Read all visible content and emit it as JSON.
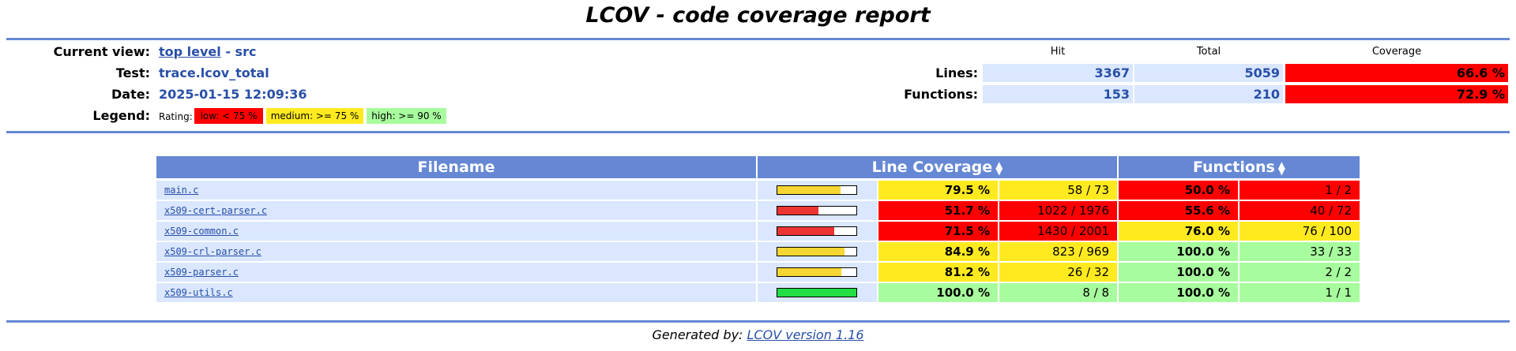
{
  "title": "LCOV - code coverage report",
  "header": {
    "current_view_label": "Current view:",
    "current_view_link": "top level",
    "current_view_rest": " - src",
    "test_label": "Test:",
    "test_value": "trace.lcov_total",
    "date_label": "Date:",
    "date_value": "2025-01-15 12:09:36",
    "legend_label": "Legend:",
    "legend_rating": "Rating:",
    "legend_low": "low: < 75 %",
    "legend_medium": "medium: >= 75 %",
    "legend_high": "high: >= 90 %"
  },
  "summary": {
    "col_hit": "Hit",
    "col_total": "Total",
    "col_coverage": "Coverage",
    "lines_label": "Lines:",
    "lines_hit": "3367",
    "lines_total": "5059",
    "lines_cov": "66.6 %",
    "functions_label": "Functions:",
    "functions_hit": "153",
    "functions_total": "210",
    "functions_cov": "72.9 %"
  },
  "table": {
    "col_filename": "Filename",
    "col_line_cov": "Line Coverage",
    "col_functions": "Functions",
    "rows": [
      {
        "file": "main.c",
        "fill": 0.795,
        "line_pct": "79.5 %",
        "line_ratio": "58 / 73",
        "line_rating": "med",
        "func_pct": "50.0 %",
        "func_ratio": "1 / 2",
        "func_rating": "lo"
      },
      {
        "file": "x509-cert-parser.c",
        "fill": 0.517,
        "line_pct": "51.7 %",
        "line_ratio": "1022 / 1976",
        "line_rating": "lo",
        "func_pct": "55.6 %",
        "func_ratio": "40 / 72",
        "func_rating": "lo"
      },
      {
        "file": "x509-common.c",
        "fill": 0.715,
        "line_pct": "71.5 %",
        "line_ratio": "1430 / 2001",
        "line_rating": "lo",
        "func_pct": "76.0 %",
        "func_ratio": "76 / 100",
        "func_rating": "med"
      },
      {
        "file": "x509-crl-parser.c",
        "fill": 0.849,
        "line_pct": "84.9 %",
        "line_ratio": "823 / 969",
        "line_rating": "med",
        "func_pct": "100.0 %",
        "func_ratio": "33 / 33",
        "func_rating": "hi"
      },
      {
        "file": "x509-parser.c",
        "fill": 0.812,
        "line_pct": "81.2 %",
        "line_ratio": "26 / 32",
        "line_rating": "med",
        "func_pct": "100.0 %",
        "func_ratio": "2 / 2",
        "func_rating": "hi"
      },
      {
        "file": "x509-utils.c",
        "fill": 1.0,
        "line_pct": "100.0 %",
        "line_ratio": "8 / 8",
        "line_rating": "hi",
        "func_pct": "100.0 %",
        "func_ratio": "1 / 1",
        "func_rating": "hi"
      }
    ]
  },
  "footer": {
    "generated_by": "Generated by: ",
    "link": "LCOV version 1.16"
  },
  "colors": {
    "lo": "#ff0000",
    "med": "#ffea20",
    "hi": "#a7fc9d",
    "bar_lo": "#ee3333",
    "bar_med": "#f6d632",
    "bar_hi": "#22dd44",
    "header_blue": "#6688d4",
    "row_blue": "#dae7fe"
  }
}
